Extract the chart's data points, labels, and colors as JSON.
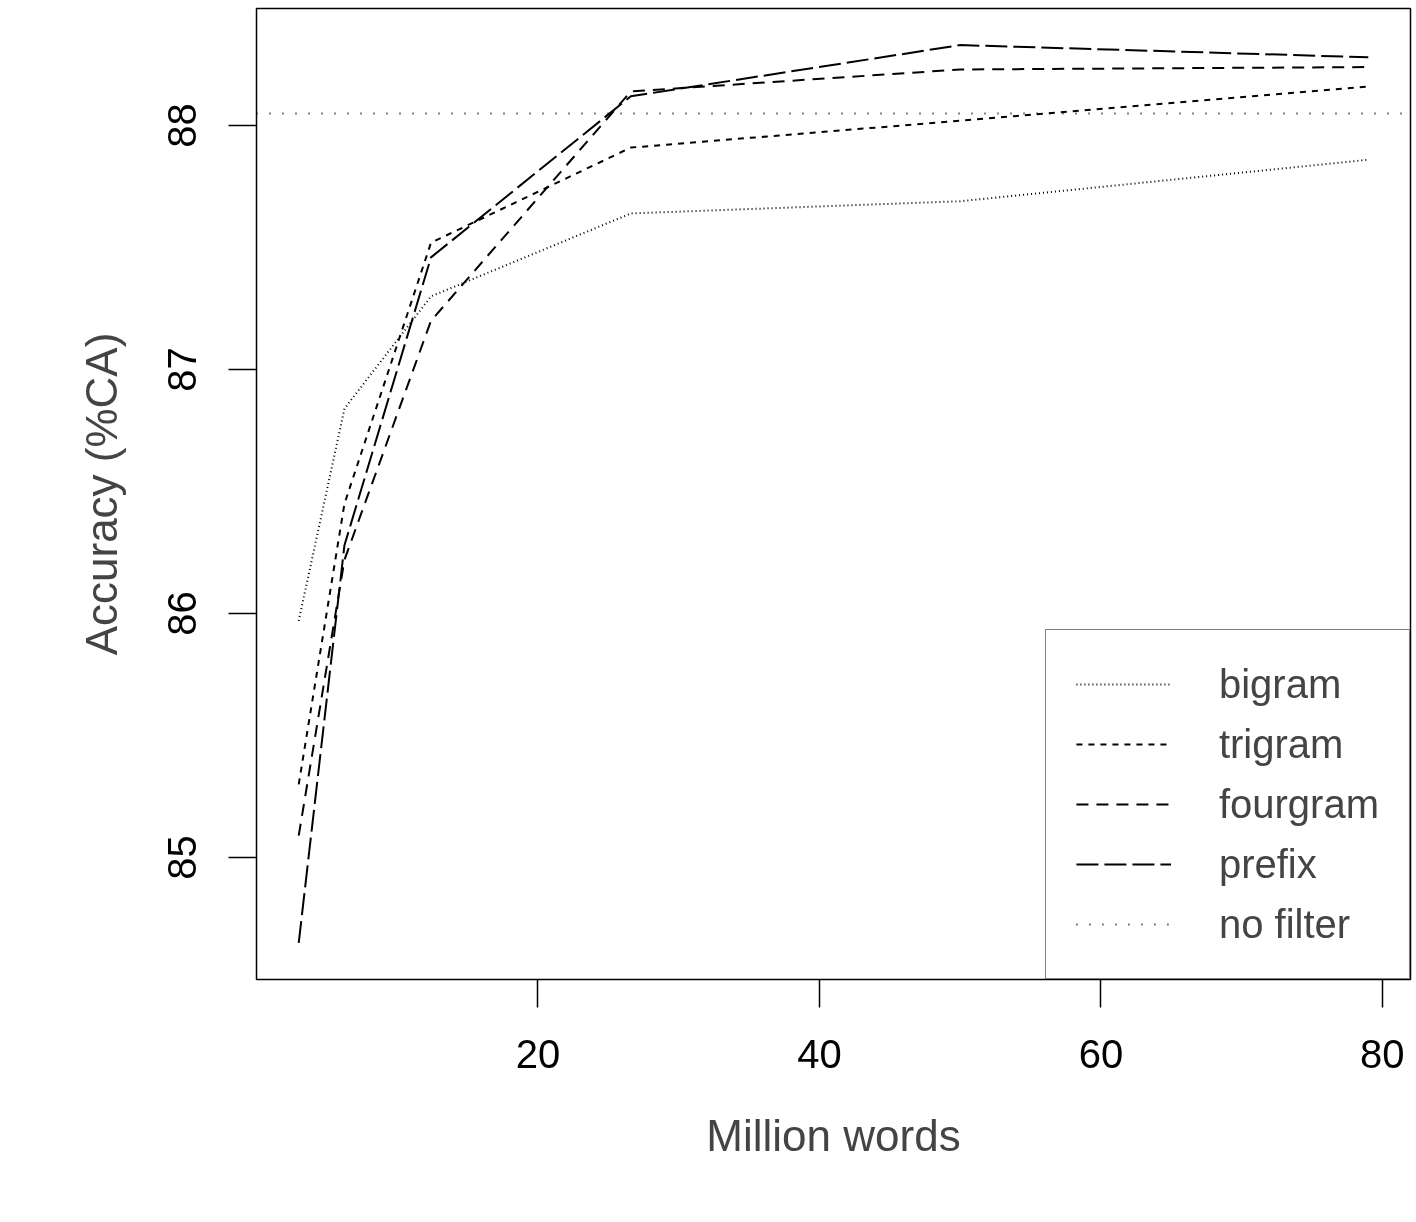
{
  "chart_data": {
    "type": "line",
    "xlabel": "Million words",
    "ylabel": "Accuracy (%CA)",
    "x": [
      3,
      6.25,
      12.4,
      26.6,
      50,
      79
    ],
    "series": [
      {
        "name": "bigram",
        "color": "#000000",
        "line_style": "dotted",
        "values": [
          85.97,
          86.84,
          87.3,
          87.64,
          87.69,
          87.86
        ]
      },
      {
        "name": "trigram",
        "color": "#000000",
        "line_style": "shortdash",
        "values": [
          85.3,
          86.45,
          87.52,
          87.91,
          88.02,
          88.16
        ]
      },
      {
        "name": "fourgram",
        "color": "#000000",
        "line_style": "dashed",
        "values": [
          85.09,
          86.22,
          87.2,
          88.14,
          88.23,
          88.24
        ]
      },
      {
        "name": "prefix",
        "color": "#000000",
        "line_style": "longdash",
        "values": [
          84.65,
          86.28,
          87.46,
          88.12,
          88.33,
          88.28
        ]
      }
    ],
    "ref_lines": [
      {
        "axis": "y",
        "value": 88.05,
        "label": "no filter",
        "color": "#000000",
        "line_style": "sparse"
      }
    ],
    "xlim": [
      0,
      82
    ],
    "ylim": [
      84.5,
      88.48
    ],
    "xticks": [
      20,
      40,
      60,
      80
    ],
    "yticks": [
      85,
      86,
      87,
      88
    ],
    "grid": false,
    "legend": "bottom right",
    "marker": "none"
  }
}
